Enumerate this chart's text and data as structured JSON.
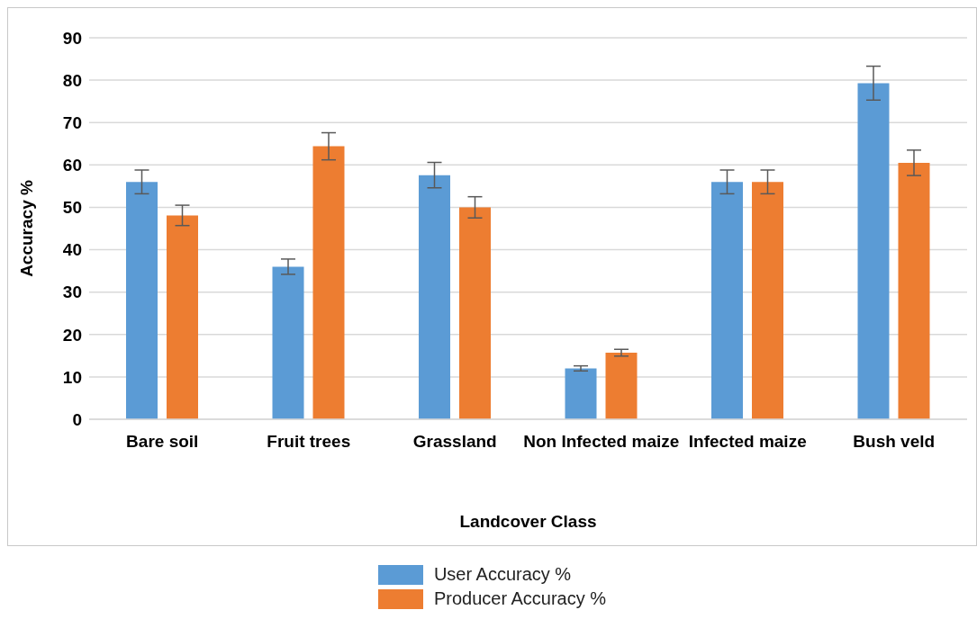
{
  "chart_data": {
    "type": "bar",
    "xlabel": "Landcover Class",
    "ylabel": "Accuracy %",
    "categories": [
      "Bare soil",
      "Fruit trees",
      "Grassland",
      "Non Infected maize",
      "Infected maize",
      "Bush veld"
    ],
    "series": [
      {
        "name": "User Accuracy %",
        "color": "#5b9bd5",
        "values": [
          56,
          36,
          57.6,
          12,
          56,
          79.3
        ],
        "errors": [
          2.8,
          1.8,
          3,
          0.6,
          2.8,
          4
        ]
      },
      {
        "name": "Producer Accuracy %",
        "color": "#ed7d31",
        "values": [
          48.1,
          64.4,
          50,
          15.7,
          56,
          60.5
        ],
        "errors": [
          2.4,
          3.2,
          2.5,
          0.8,
          2.8,
          3
        ]
      }
    ],
    "ylim": [
      0,
      90
    ],
    "yticks": [
      0,
      10,
      20,
      30,
      40,
      50,
      60,
      70,
      80,
      90
    ],
    "grid": "y",
    "legend": "bottom"
  }
}
